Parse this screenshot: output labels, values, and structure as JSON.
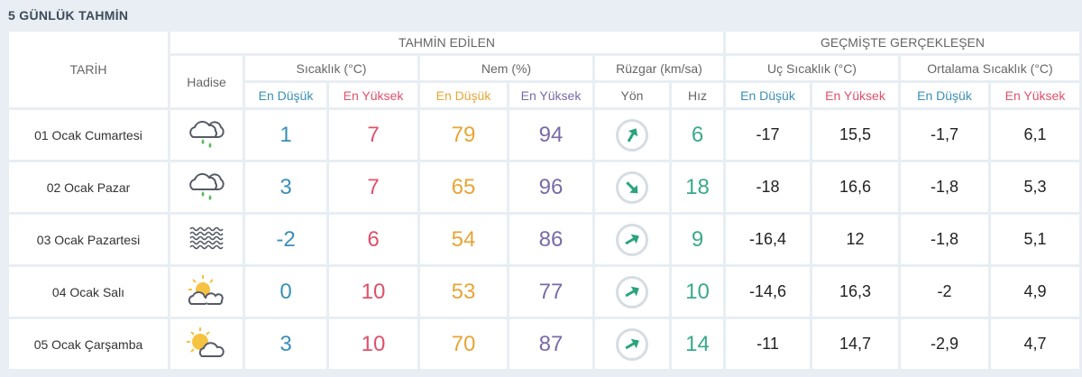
{
  "title": "5 GÜNLÜK TAHMİN",
  "headers": {
    "date": "TARİH",
    "forecast": "TAHMİN EDİLEN",
    "past": "GEÇMİŞTE GERÇEKLEŞEN",
    "event": "Hadise",
    "temp": "Sıcaklık (°C)",
    "humidity": "Nem (%)",
    "wind": "Rüzgar (km/sa)",
    "extreme": "Uç Sıcaklık (°C)",
    "average": "Ortalama Sıcaklık (°C)",
    "min": "En Düşük",
    "max": "En Yüksek",
    "direction": "Yön",
    "speed": "Hız"
  },
  "colors": {
    "min": "#3a8fb7",
    "max": "#e0506a",
    "hum_min": "#e8a535",
    "hum_max": "#7a6aa8",
    "speed": "#3aaa8a"
  },
  "rows": [
    {
      "date": "01 Ocak Cumartesi",
      "icon": "cloud-rain-icon",
      "tmin": "1",
      "tmax": "7",
      "hmin": "79",
      "hmax": "94",
      "wind_deg": 30,
      "speed": "6",
      "umin": "-17",
      "umax": "15,5",
      "omin": "-1,7",
      "omax": "6,1"
    },
    {
      "date": "02 Ocak Pazar",
      "icon": "cloud-rain-icon",
      "tmin": "3",
      "tmax": "7",
      "hmin": "65",
      "hmax": "96",
      "wind_deg": 135,
      "speed": "18",
      "umin": "-18",
      "umax": "16,6",
      "omin": "-1,8",
      "omax": "5,3"
    },
    {
      "date": "03 Ocak Pazartesi",
      "icon": "fog-icon",
      "tmin": "-2",
      "tmax": "6",
      "hmin": "54",
      "hmax": "86",
      "wind_deg": 60,
      "speed": "9",
      "umin": "-16,4",
      "umax": "12",
      "omin": "-1,8",
      "omax": "5,1"
    },
    {
      "date": "04 Ocak Salı",
      "icon": "partly-cloudy-icon",
      "tmin": "0",
      "tmax": "10",
      "hmin": "53",
      "hmax": "77",
      "wind_deg": 60,
      "speed": "10",
      "umin": "-14,6",
      "umax": "16,3",
      "omin": "-2",
      "omax": "4,9"
    },
    {
      "date": "05 Ocak Çarşamba",
      "icon": "sun-cloud-icon",
      "tmin": "3",
      "tmax": "10",
      "hmin": "70",
      "hmax": "87",
      "wind_deg": 60,
      "speed": "14",
      "umin": "-11",
      "umax": "14,7",
      "omin": "-2,9",
      "omax": "4,7"
    }
  ]
}
